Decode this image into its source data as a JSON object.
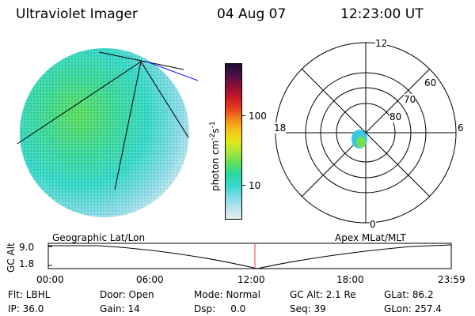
{
  "header": {
    "instrument": "Ultraviolet Imager",
    "date": "04 Aug 07",
    "time": "12:23:00 UT"
  },
  "colorbar": {
    "unit_label": "photon cm",
    "unit_sup1": "-2",
    "unit_mid": "s",
    "unit_sup2": "-1",
    "tick_labels": [
      "100",
      "10"
    ],
    "colors": [
      "#1a0f2e",
      "#4a1048",
      "#8a0f3a",
      "#c41628",
      "#e8401c",
      "#f28c1a",
      "#f6c21c",
      "#e6e61c",
      "#a6e638",
      "#5fe05a",
      "#2ad89a",
      "#38d8d0",
      "#7fdce6",
      "#b8e4ec",
      "#e8eeee"
    ]
  },
  "polar_plot": {
    "labels": {
      "top": "12",
      "bottom": "0",
      "left": "18",
      "right": "6"
    },
    "lat_labels": [
      "80",
      "70",
      "60"
    ],
    "spot_colors": [
      "#38c8e8",
      "#2ad890",
      "#6fe050"
    ]
  },
  "timeline": {
    "left_title": "Geographic Lat/Lon",
    "right_title": "Apex MLat/MLT",
    "yaxis_label": "GC Alt",
    "y_ticks": [
      "9.0",
      "1.8"
    ],
    "x_ticks": [
      "00:00",
      "06:00",
      "12:00",
      "18:00",
      "23:59"
    ],
    "current_time_color": "#e04040"
  },
  "status": {
    "flt": "Flt: LBHL",
    "door": "Door: Open",
    "mode": "Mode: Normal",
    "gc_alt": "GC Alt: 2.1 Re",
    "glat": "GLat:  86.2",
    "ip": "IP: 36.0",
    "gain": "Gain: 14",
    "dsp": "Dsp:     0.0",
    "seq": "Seq: 39",
    "glon": "GLon: 257.4"
  }
}
